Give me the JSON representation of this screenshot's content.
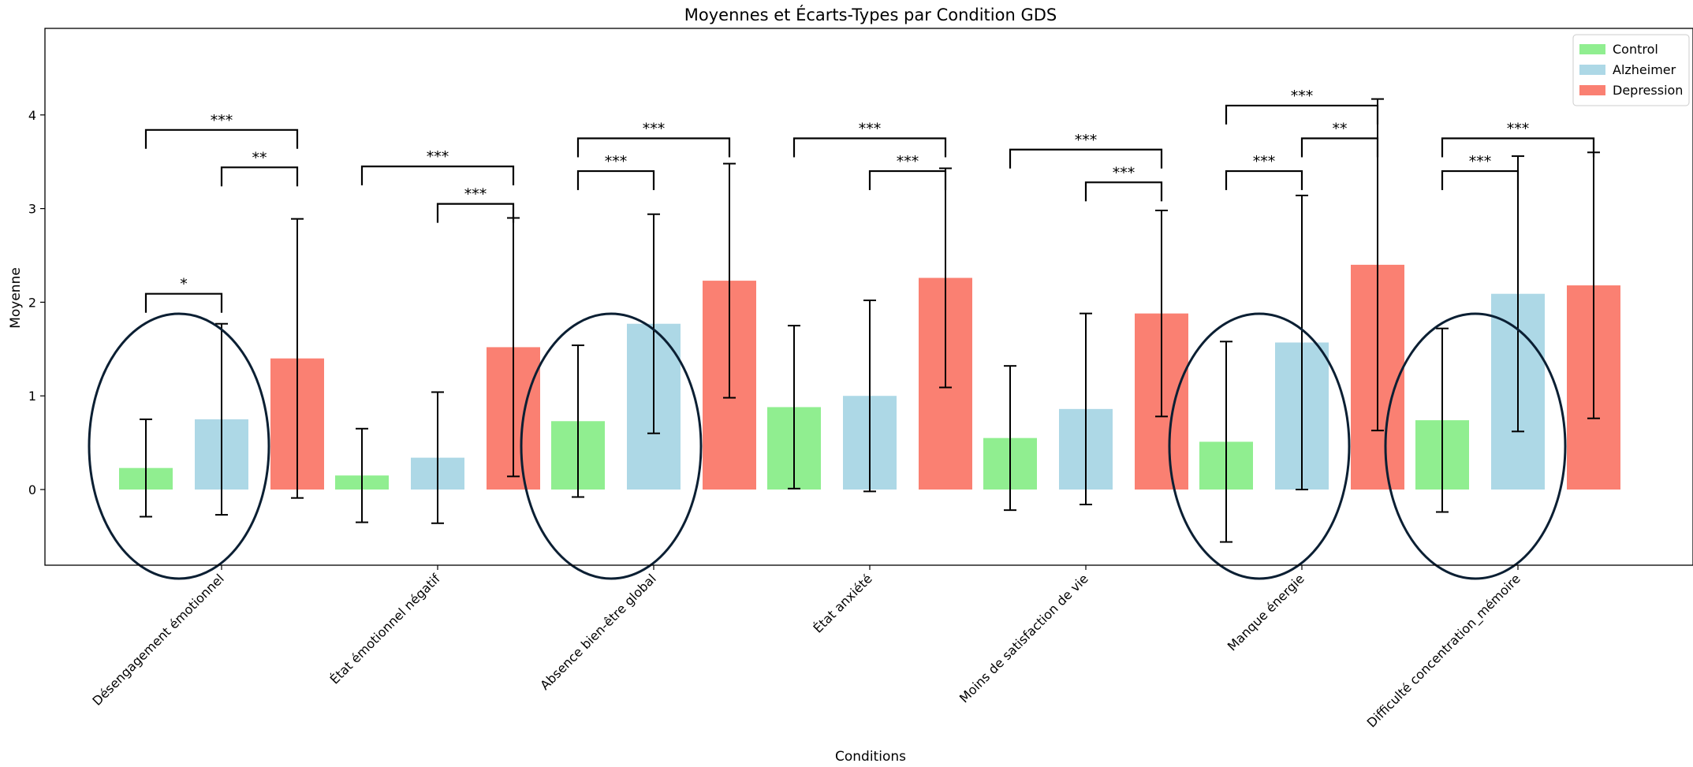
{
  "chart_data": {
    "type": "bar",
    "title": "Moyennes et Écarts-Types par Condition GDS",
    "xlabel": "Conditions",
    "ylabel": "Moyenne",
    "ylim": [
      -0.82,
      4.9
    ],
    "yticks": [
      0,
      1,
      2,
      3,
      4
    ],
    "grid": false,
    "legend_position": "top-right",
    "categories": [
      "Désengagement émotionnel",
      "État émotionnel négatif",
      "Absence bien-être global",
      "État anxiété",
      "Moins de satisfaction de vie",
      "Manque énergie",
      "Difficulté concentration_mémoire"
    ],
    "series": [
      {
        "name": "Control",
        "color": "#90ee90",
        "values": [
          0.23,
          0.15,
          0.73,
          0.88,
          0.55,
          0.51,
          0.74
        ],
        "std": [
          0.52,
          0.5,
          0.81,
          0.87,
          0.77,
          1.07,
          0.98
        ]
      },
      {
        "name": "Alzheimer",
        "color": "#add8e6",
        "values": [
          0.75,
          0.34,
          1.77,
          1.0,
          0.86,
          1.57,
          2.09
        ],
        "std": [
          1.02,
          0.7,
          1.17,
          1.02,
          1.02,
          1.57,
          1.47
        ]
      },
      {
        "name": "Depression",
        "color": "#fa8072",
        "values": [
          1.4,
          1.52,
          2.23,
          2.26,
          1.88,
          2.4,
          2.18
        ],
        "std": [
          1.49,
          1.38,
          1.25,
          1.17,
          1.1,
          1.77,
          1.42
        ]
      }
    ],
    "significance": [
      {
        "category": 0,
        "from": 0,
        "to": 1,
        "label": "*"
      },
      {
        "category": 0,
        "from": 1,
        "to": 2,
        "label": "**"
      },
      {
        "category": 0,
        "from": 0,
        "to": 2,
        "label": "***"
      },
      {
        "category": 1,
        "from": 1,
        "to": 2,
        "label": "***"
      },
      {
        "category": 1,
        "from": 0,
        "to": 2,
        "label": "***"
      },
      {
        "category": 2,
        "from": 0,
        "to": 1,
        "label": "***"
      },
      {
        "category": 2,
        "from": 0,
        "to": 2,
        "label": "***"
      },
      {
        "category": 3,
        "from": 1,
        "to": 2,
        "label": "***"
      },
      {
        "category": 3,
        "from": 0,
        "to": 2,
        "label": "***"
      },
      {
        "category": 4,
        "from": 1,
        "to": 2,
        "label": "***"
      },
      {
        "category": 4,
        "from": 0,
        "to": 2,
        "label": "***"
      },
      {
        "category": 5,
        "from": 0,
        "to": 1,
        "label": "***"
      },
      {
        "category": 5,
        "from": 1,
        "to": 2,
        "label": "**"
      },
      {
        "category": 5,
        "from": 0,
        "to": 2,
        "label": "***"
      },
      {
        "category": 6,
        "from": 0,
        "to": 1,
        "label": "***"
      },
      {
        "category": 6,
        "from": 0,
        "to": 2,
        "label": "***"
      }
    ],
    "highlighted_categories": [
      0,
      2,
      5,
      6
    ]
  }
}
